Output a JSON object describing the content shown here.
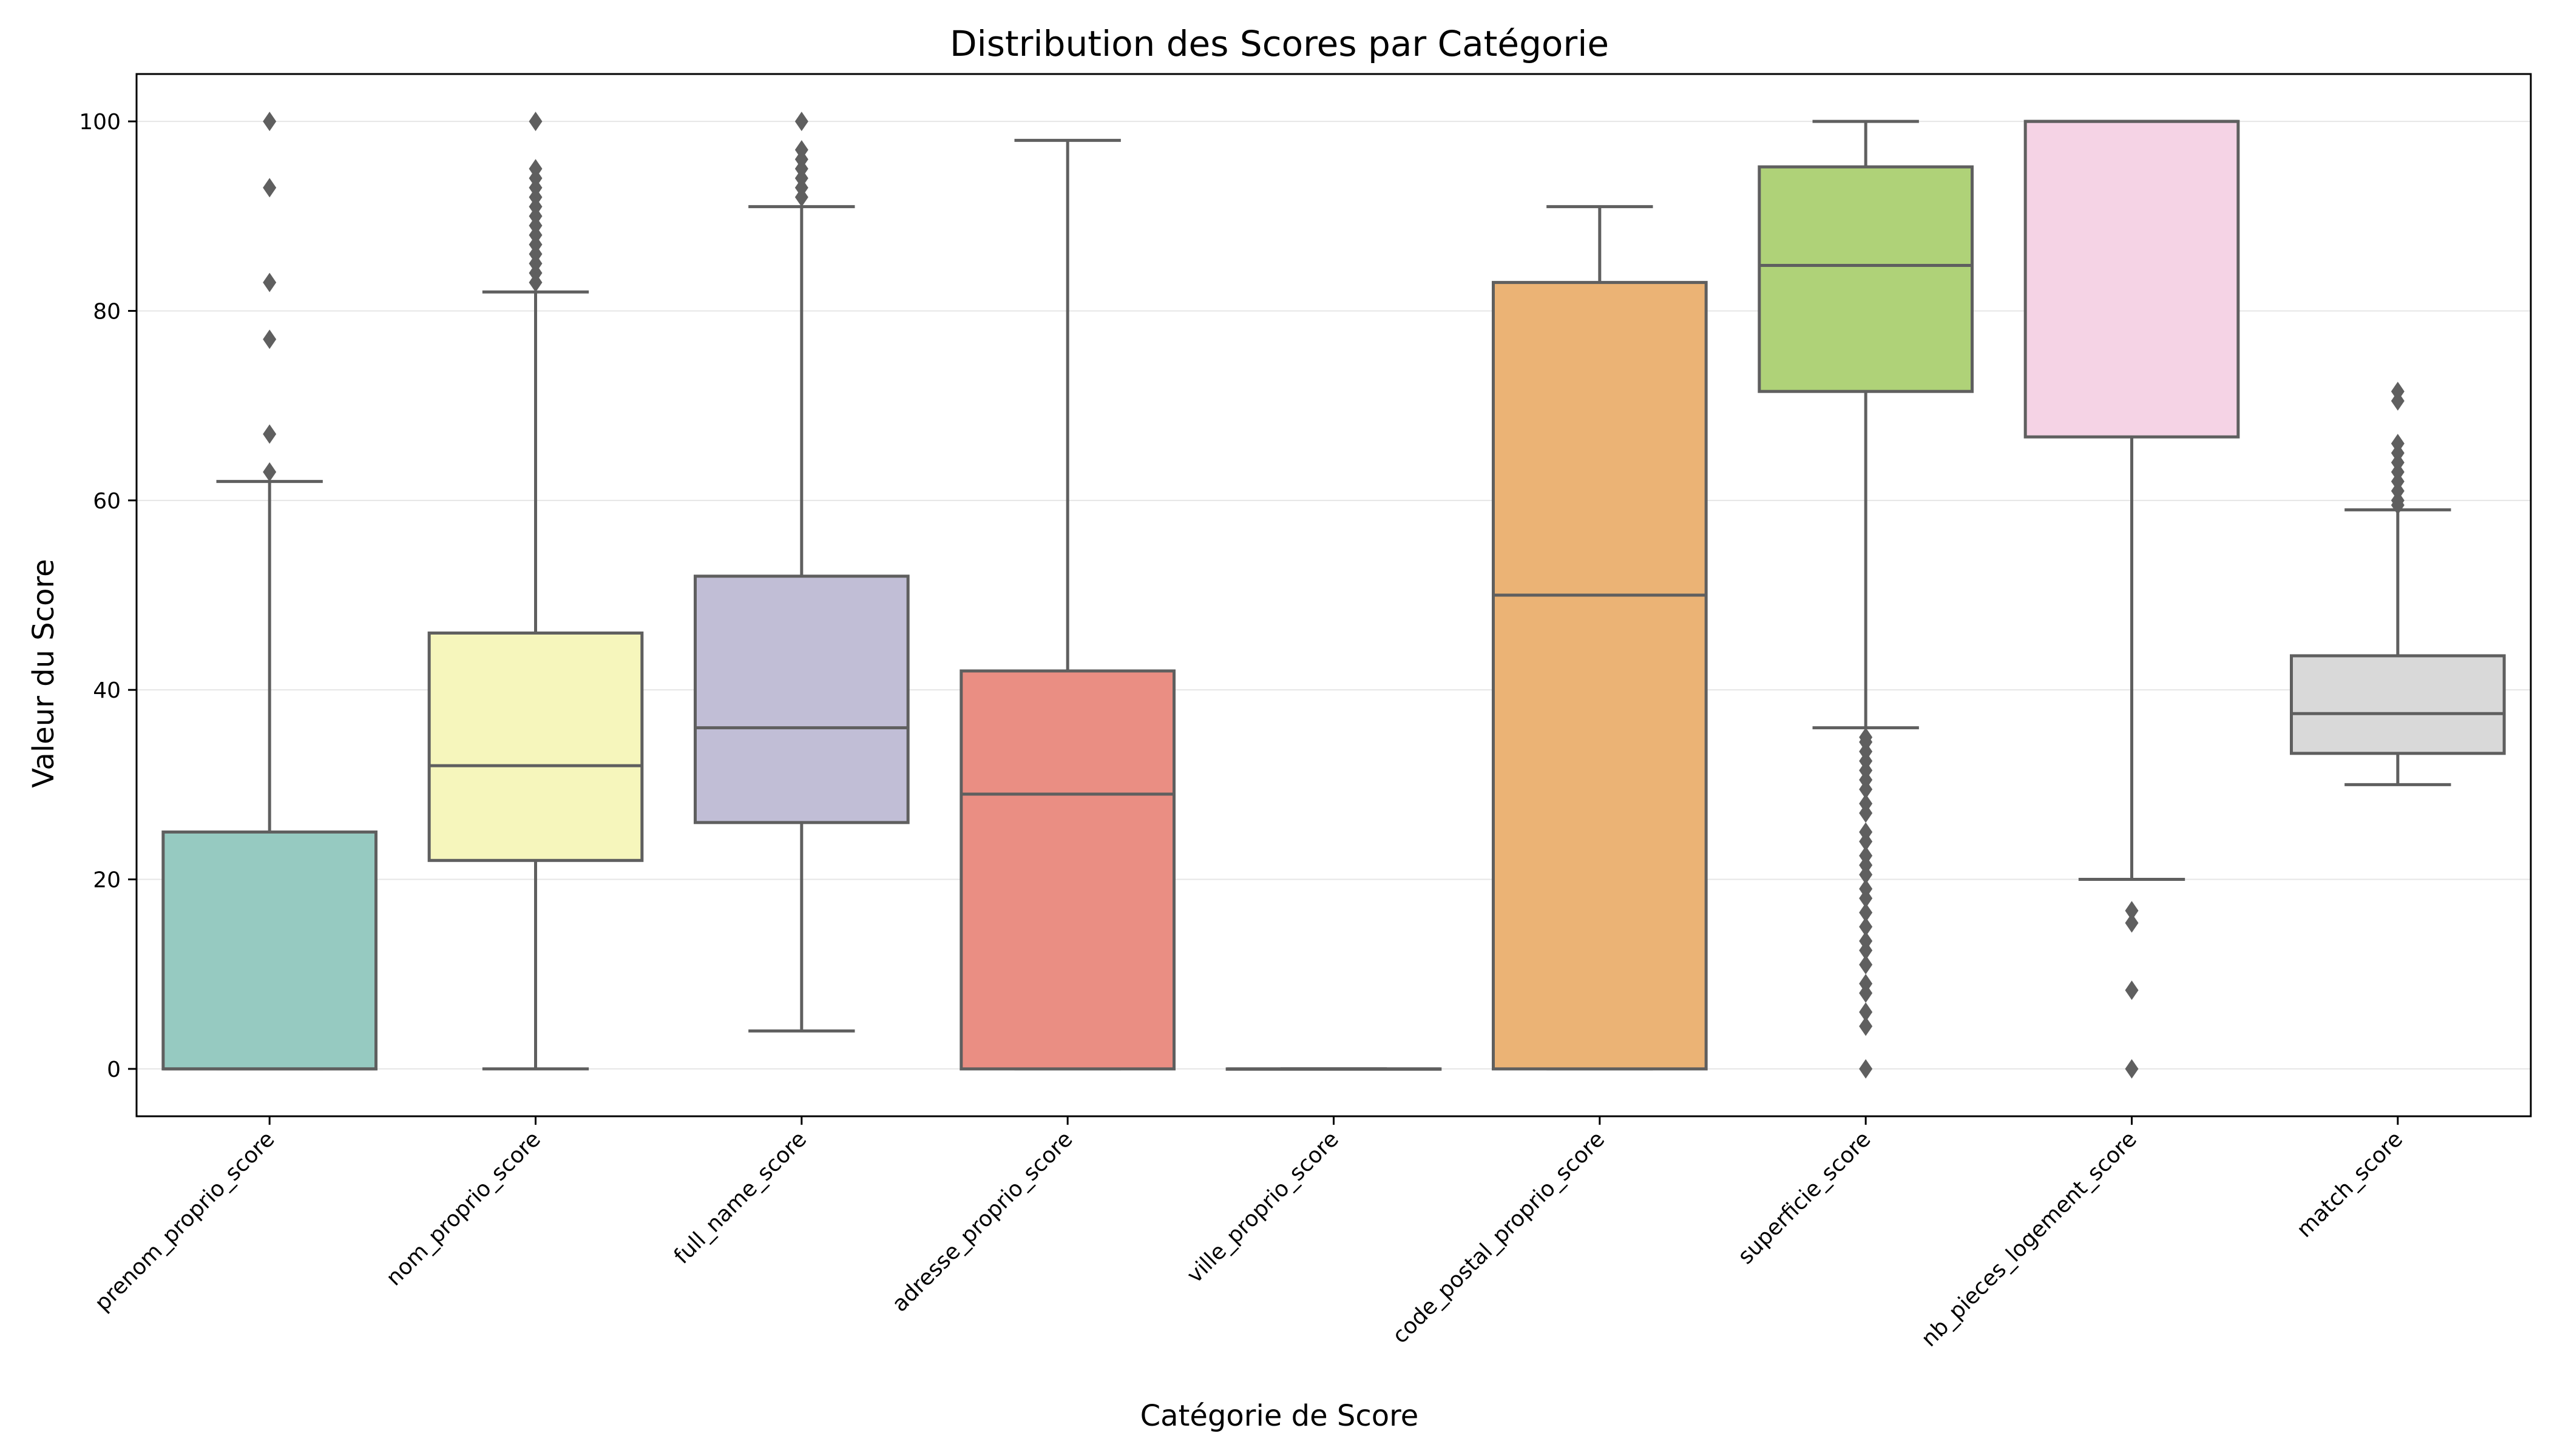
{
  "chart_data": {
    "type": "boxplot",
    "title": "Distribution des Scores par Catégorie",
    "xlabel": "Catégorie de Score",
    "ylabel": "Valeur du Score",
    "ylim": [
      -5,
      105
    ],
    "yticks": [
      0,
      20,
      40,
      60,
      80,
      100
    ],
    "grid": "y",
    "categories": [
      "prenom_proprio_score",
      "nom_proprio_score",
      "full_name_score",
      "adresse_proprio_score",
      "ville_proprio_score",
      "code_postal_proprio_score",
      "superficie_score",
      "nb_pieces_logement_score",
      "match_score"
    ],
    "boxes": [
      {
        "color": "#96cac1",
        "whisker_low": 0,
        "q1": 0,
        "median": 0,
        "q3": 25,
        "whisker_high": 62,
        "outliers": [
          63,
          67,
          77,
          83,
          93,
          100
        ]
      },
      {
        "color": "#f6f6bc",
        "whisker_low": 0,
        "q1": 22,
        "median": 32,
        "q3": 46,
        "whisker_high": 82,
        "outliers": [
          83,
          84,
          85,
          86,
          87,
          88,
          89,
          90,
          91,
          92,
          93,
          94,
          95,
          100
        ]
      },
      {
        "color": "#c1bed6",
        "whisker_low": 4,
        "q1": 26,
        "median": 36,
        "q3": 52,
        "whisker_high": 91,
        "outliers": [
          92,
          93,
          94,
          95,
          96,
          97,
          100
        ]
      },
      {
        "color": "#ea8e83",
        "whisker_low": 0,
        "q1": 0,
        "median": 29,
        "q3": 42,
        "whisker_high": 98,
        "outliers": []
      },
      {
        "color": "#8db3d3",
        "whisker_low": 0,
        "q1": 0,
        "median": 0,
        "q3": 0,
        "whisker_high": 0,
        "outliers": []
      },
      {
        "color": "#ebb375",
        "whisker_low": 0,
        "q1": 0,
        "median": 50,
        "q3": 83,
        "whisker_high": 91,
        "outliers": []
      },
      {
        "color": "#afd278",
        "whisker_low": 36,
        "q1": 71.5,
        "median": 84.8,
        "q3": 95.2,
        "whisker_high": 100,
        "outliers": [
          0,
          4.5,
          6,
          8,
          9,
          11,
          12.5,
          13.5,
          15,
          16.5,
          18,
          19,
          20.5,
          21.5,
          22.5,
          24,
          25,
          27,
          28,
          29.5,
          30.5,
          31.5,
          32.5,
          33.5,
          34.5,
          35
        ]
      },
      {
        "color": "#f5d3e5",
        "whisker_low": 20,
        "q1": 66.7,
        "median": 100,
        "q3": 100,
        "whisker_high": 100,
        "outliers": [
          0,
          8.3,
          15.4,
          16.7
        ]
      },
      {
        "color": "#d9d9d9",
        "whisker_low": 30,
        "q1": 33.3,
        "median": 37.5,
        "q3": 43.6,
        "whisker_high": 59,
        "outliers": [
          59.5,
          60,
          61,
          62,
          63,
          64,
          65,
          66,
          70.5,
          71.5
        ]
      }
    ]
  }
}
